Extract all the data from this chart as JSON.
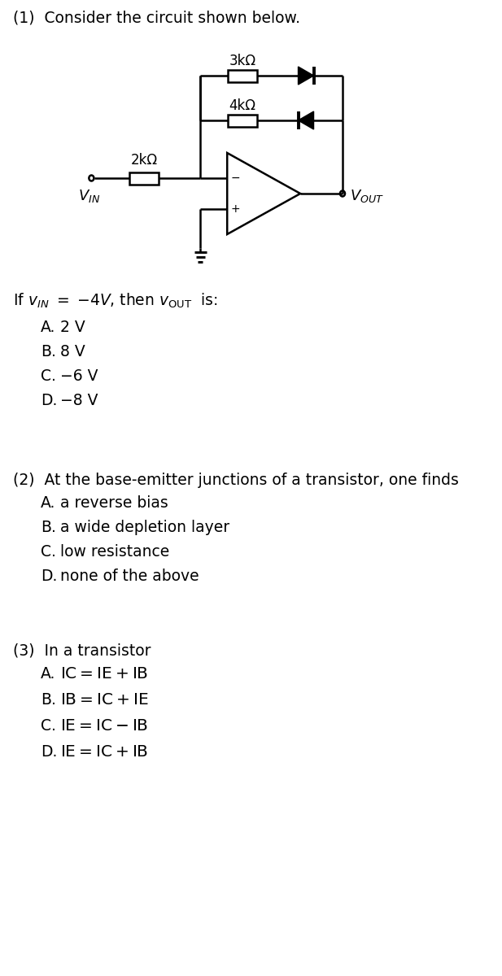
{
  "q1_header": "(1)  Consider the circuit shown below.",
  "q1_condition_parts": [
    "If ",
    "v",
    "IN",
    " = −4",
    "V",
    ", then  ",
    "v",
    "OUT",
    "  is:"
  ],
  "q1_choices": [
    [
      "A.",
      "2 V"
    ],
    [
      "B.",
      "8 V"
    ],
    [
      "C.",
      "−6 V"
    ],
    [
      "D.",
      "−8 V"
    ]
  ],
  "q2_header": "(2)  At the base-emitter junctions of a transistor, one finds",
  "q2_choices": [
    [
      "A.",
      "a reverse bias"
    ],
    [
      "B.",
      "a wide depletion layer"
    ],
    [
      "C.",
      "low resistance"
    ],
    [
      "D.",
      "none of the above"
    ]
  ],
  "q3_header": "(3)  In a transistor",
  "q3_choices": [
    [
      "A.",
      "IC = IE + IB"
    ],
    [
      "B.",
      "IB = IC + IE"
    ],
    [
      "C.",
      "IE = IC − IB"
    ],
    [
      "D.",
      "IE = IC + IB"
    ]
  ],
  "bg_color": "#ffffff",
  "text_color": "#000000",
  "font_size": 13.5,
  "resistor_3k_label": "3kΩ",
  "resistor_4k_label": "4kΩ",
  "resistor_2k_label": "2kΩ"
}
